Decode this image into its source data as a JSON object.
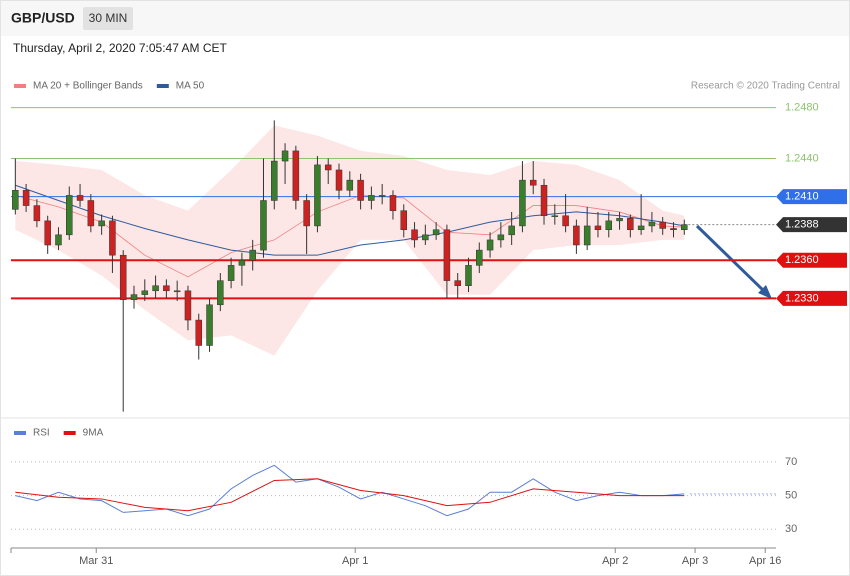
{
  "header": {
    "symbol": "GBP/USD",
    "interval": "30 MIN",
    "datetime": "Thursday, April 2, 2020 7:05:47 AM CET"
  },
  "chart_data": [
    {
      "type": "candlestick",
      "credit": "Research © 2020 Trading Central",
      "up_color": "#3a7d2c",
      "down_color": "#cc2222",
      "xlim": [
        -0.4,
        70.5
      ],
      "ylim": [
        1.2236,
        1.2486
      ],
      "candles": [
        [
          1.24,
          1.244,
          1.2396,
          1.2415
        ],
        [
          1.2415,
          1.242,
          1.2398,
          1.2403
        ],
        [
          1.2403,
          1.2408,
          1.2386,
          1.2391
        ],
        [
          1.2391,
          1.2395,
          1.2365,
          1.2372
        ],
        [
          1.2372,
          1.2386,
          1.2368,
          1.238
        ],
        [
          1.238,
          1.2418,
          1.2376,
          1.2411
        ],
        [
          1.2411,
          1.242,
          1.2402,
          1.2407
        ],
        [
          1.2407,
          1.2412,
          1.2382,
          1.2387
        ],
        [
          1.2387,
          1.2396,
          1.238,
          1.2391
        ],
        [
          1.2391,
          1.2395,
          1.235,
          1.2364
        ],
        [
          1.2364,
          1.2368,
          1.2241,
          1.2329
        ],
        [
          1.2329,
          1.234,
          1.2322,
          1.2333
        ],
        [
          1.2333,
          1.2345,
          1.2328,
          1.2336
        ],
        [
          1.2336,
          1.2348,
          1.233,
          1.234
        ],
        [
          1.234,
          1.2345,
          1.233,
          1.2336
        ],
        [
          1.2336,
          1.2344,
          1.2328,
          1.2336
        ],
        [
          1.2336,
          1.234,
          1.2305,
          1.2313
        ],
        [
          1.2313,
          1.2318,
          1.2282,
          1.2293
        ],
        [
          1.2293,
          1.233,
          1.2288,
          1.2325
        ],
        [
          1.2325,
          1.235,
          1.232,
          1.2344
        ],
        [
          1.2344,
          1.2362,
          1.2338,
          1.2356
        ],
        [
          1.2356,
          1.2366,
          1.234,
          1.236
        ],
        [
          1.236,
          1.2376,
          1.2352,
          1.2368
        ],
        [
          1.2368,
          1.244,
          1.2362,
          1.2407
        ],
        [
          1.2407,
          1.247,
          1.24,
          1.2438
        ],
        [
          1.2438,
          1.2452,
          1.242,
          1.2446
        ],
        [
          1.2446,
          1.245,
          1.24,
          1.2407
        ],
        [
          1.2407,
          1.2412,
          1.2365,
          1.2387
        ],
        [
          1.2387,
          1.2442,
          1.2382,
          1.2435
        ],
        [
          1.2435,
          1.244,
          1.242,
          1.2431
        ],
        [
          1.2431,
          1.2436,
          1.2408,
          1.2415
        ],
        [
          1.2415,
          1.243,
          1.241,
          1.2423
        ],
        [
          1.2423,
          1.2428,
          1.24,
          1.2407
        ],
        [
          1.2407,
          1.2418,
          1.24,
          1.2411
        ],
        [
          1.2411,
          1.242,
          1.2404,
          1.2411
        ],
        [
          1.2411,
          1.2415,
          1.2392,
          1.2399
        ],
        [
          1.2399,
          1.2404,
          1.2378,
          1.2384
        ],
        [
          1.2384,
          1.239,
          1.237,
          1.2376
        ],
        [
          1.2376,
          1.2388,
          1.2372,
          1.238
        ],
        [
          1.238,
          1.239,
          1.2376,
          1.2384
        ],
        [
          1.2384,
          1.2388,
          1.233,
          1.2344
        ],
        [
          1.2344,
          1.235,
          1.233,
          1.234
        ],
        [
          1.234,
          1.2362,
          1.2335,
          1.2356
        ],
        [
          1.2356,
          1.2374,
          1.235,
          1.2368
        ],
        [
          1.2368,
          1.2382,
          1.2362,
          1.2376
        ],
        [
          1.2376,
          1.239,
          1.237,
          1.238
        ],
        [
          1.238,
          1.2398,
          1.2372,
          1.2387
        ],
        [
          1.2387,
          1.2438,
          1.2382,
          1.2423
        ],
        [
          1.2423,
          1.2438,
          1.2412,
          1.2419
        ],
        [
          1.2419,
          1.2424,
          1.2388,
          1.2395
        ],
        [
          1.2395,
          1.2404,
          1.2388,
          1.2395
        ],
        [
          1.2395,
          1.2412,
          1.2382,
          1.2387
        ],
        [
          1.2387,
          1.2392,
          1.2365,
          1.2372
        ],
        [
          1.2372,
          1.2402,
          1.2368,
          1.2387
        ],
        [
          1.2387,
          1.2398,
          1.2378,
          1.2384
        ],
        [
          1.2384,
          1.2398,
          1.2378,
          1.2391
        ],
        [
          1.2391,
          1.2398,
          1.2384,
          1.2393
        ],
        [
          1.2393,
          1.2396,
          1.2378,
          1.2384
        ],
        [
          1.2384,
          1.2412,
          1.238,
          1.2387
        ],
        [
          1.2387,
          1.2398,
          1.2382,
          1.239
        ],
        [
          1.239,
          1.2394,
          1.238,
          1.2385
        ],
        [
          1.2385,
          1.239,
          1.2378,
          1.2384
        ],
        [
          1.2384,
          1.2392,
          1.238,
          1.2388
        ]
      ],
      "overlay_x": [
        0,
        4,
        8,
        12,
        16,
        20,
        24,
        28,
        32,
        36,
        40,
        44,
        48,
        52,
        56,
        60,
        62
      ],
      "series": [
        {
          "name": "MA 20 + Bollinger Bands",
          "color": "#f08080",
          "values": [
            1.2411,
            1.2402,
            1.239,
            1.2364,
            1.2347,
            1.2366,
            1.2376,
            1.2398,
            1.2411,
            1.2409,
            1.2382,
            1.238,
            1.2403,
            1.2403,
            1.2398,
            1.2387,
            1.2386
          ],
          "upper": [
            1.2438,
            1.2435,
            1.2431,
            1.2411,
            1.2399,
            1.2431,
            1.2466,
            1.2458,
            1.2446,
            1.2442,
            1.2431,
            1.2427,
            1.2438,
            1.2435,
            1.2423,
            1.2399,
            1.2395
          ],
          "lower": [
            1.2384,
            1.2368,
            1.2348,
            1.2321,
            1.2297,
            1.2301,
            1.2285,
            1.2336,
            1.2376,
            1.2376,
            1.2333,
            1.2333,
            1.2368,
            1.2372,
            1.2372,
            1.2376,
            1.2376
          ]
        },
        {
          "name": "MA 50",
          "color": "#2f5b9c",
          "values": [
            1.2419,
            1.2407,
            1.2395,
            1.2385,
            1.2376,
            1.2368,
            1.2364,
            1.2364,
            1.2372,
            1.2376,
            1.2382,
            1.239,
            1.2395,
            1.2398,
            1.2395,
            1.239,
            1.2387
          ]
        }
      ],
      "levels": [
        {
          "value": 1.248,
          "label": "1.2480",
          "color": "#8dc26f",
          "style": "thin"
        },
        {
          "value": 1.244,
          "label": "1.2440",
          "color": "#8dc26f",
          "style": "thin"
        },
        {
          "value": 1.241,
          "label": "1.2410",
          "color": "#2f6fe8",
          "style": "box"
        },
        {
          "value": 1.2388,
          "label": "1.2388",
          "color": "#333333",
          "style": "dotted"
        },
        {
          "value": 1.236,
          "label": "1.2360",
          "color": "#e01010",
          "style": "thick"
        },
        {
          "value": 1.233,
          "label": "1.2330",
          "color": "#e01010",
          "style": "thick"
        }
      ]
    },
    {
      "type": "line",
      "xlim": [
        -0.4,
        70.5
      ],
      "ylim": [
        20,
        92
      ],
      "yticks": [
        30,
        50,
        70
      ],
      "xticks": [
        {
          "value": 7.5,
          "label": "Mar 31"
        },
        {
          "value": 31.5,
          "label": "Apr 1"
        },
        {
          "value": 55.6,
          "label": "Apr 2"
        },
        {
          "value": 63,
          "label": "Apr 3"
        },
        {
          "value": 69.5,
          "label": "Apr 16"
        }
      ],
      "series": [
        {
          "name": "RSI",
          "color": "#5b7fd6",
          "x": [
            0,
            2,
            4,
            6,
            8,
            10,
            12,
            14,
            16,
            18,
            20,
            22,
            24,
            26,
            28,
            30,
            32,
            34,
            36,
            38,
            40,
            42,
            44,
            46,
            48,
            50,
            52,
            54,
            56,
            58,
            60,
            62
          ],
          "values": [
            50,
            47,
            52,
            48,
            47,
            40,
            41,
            42,
            38,
            42,
            54,
            62,
            68,
            58,
            60,
            55,
            48,
            52,
            48,
            44,
            38,
            42,
            52,
            52,
            60,
            52,
            47,
            50,
            52,
            50,
            50,
            51
          ]
        },
        {
          "name": "9MA",
          "color": "#e01010",
          "x": [
            0,
            4,
            8,
            12,
            16,
            20,
            24,
            28,
            32,
            36,
            40,
            44,
            48,
            52,
            56,
            60,
            62
          ],
          "values": [
            52,
            49,
            48,
            43,
            41,
            46,
            59,
            60,
            53,
            50,
            44,
            46,
            54,
            52,
            50,
            50,
            50
          ]
        }
      ]
    }
  ]
}
